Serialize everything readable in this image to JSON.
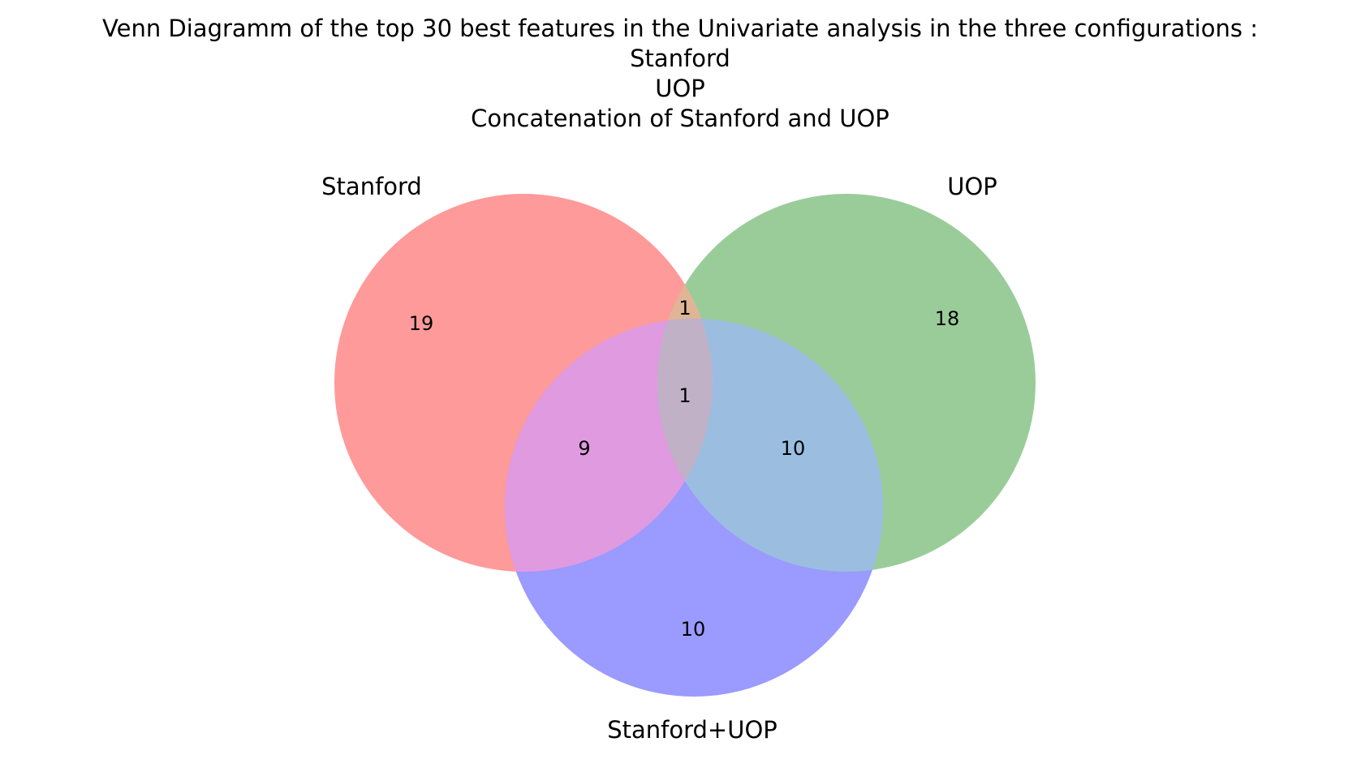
{
  "chart_data": {
    "type": "venn3",
    "title_lines": [
      "Venn Diagramm of the top 30 best features in the Univariate analysis in the three configurations :",
      "Stanford",
      "UOP",
      "Concatenation of Stanford and UOP"
    ],
    "sets": [
      {
        "key": "A",
        "name": "Stanford",
        "color": "#ff9a9a"
      },
      {
        "key": "B",
        "name": "UOP",
        "color": "#9acc9a"
      },
      {
        "key": "C",
        "name": "Stanford+UOP",
        "color": "#9a9aff"
      }
    ],
    "regions": {
      "A_only": 19,
      "B_only": 18,
      "C_only": 10,
      "A_and_B_only": 1,
      "A_and_C_only": 9,
      "B_and_C_only": 10,
      "A_and_B_and_C": 1
    },
    "region_colors": {
      "A_and_B_only": "#e0b596",
      "A_and_C_only": "#e09ae0",
      "B_and_C_only": "#9bbee0",
      "A_and_B_and_C": "#c0b1c7"
    }
  }
}
